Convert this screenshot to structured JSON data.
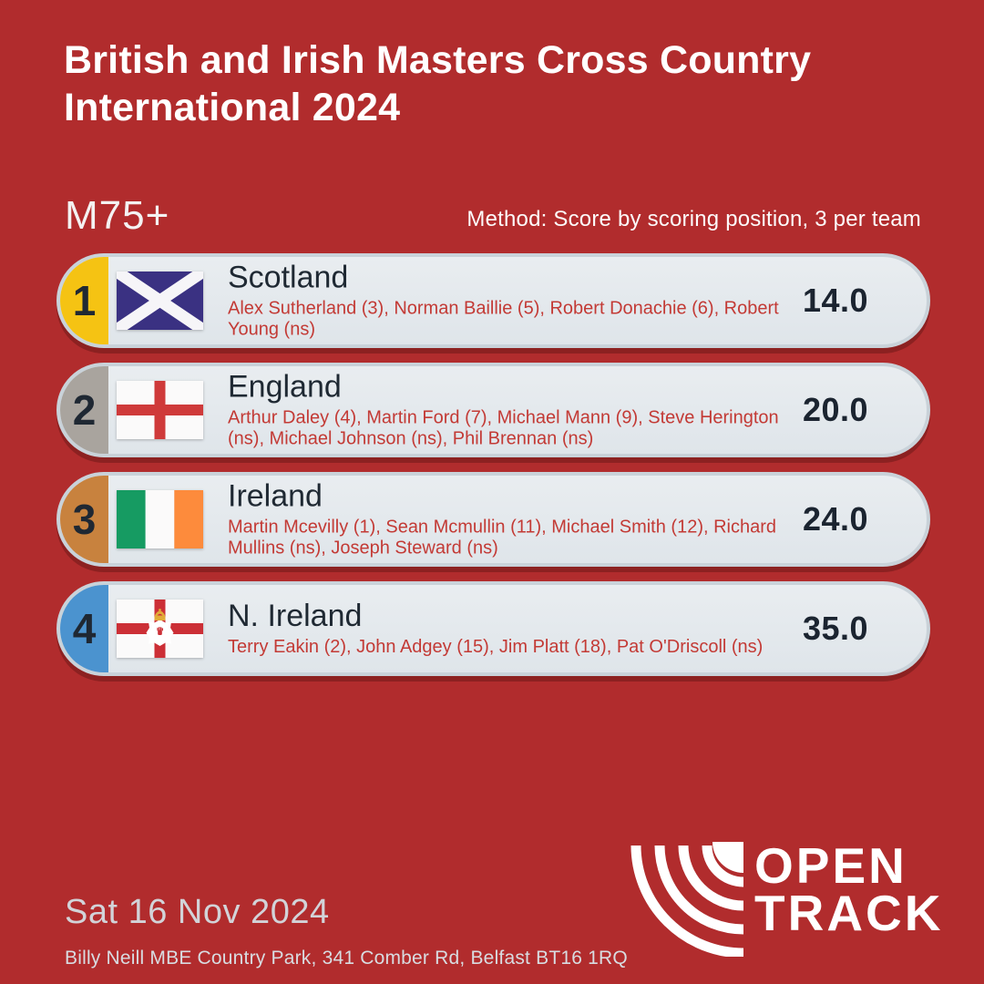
{
  "header": {
    "title_line1": "British and Irish Masters Cross Country",
    "title_line2": "International 2024",
    "category": "M75+",
    "method": "Method: Score by scoring position, 3 per team"
  },
  "results": [
    {
      "rank": "1",
      "medal_color": "#f5c313",
      "flag": "scotland",
      "team": "Scotland",
      "athletes": "Alex Sutherland (3), Norman Baillie (5), Robert Donachie (6), Robert Young (ns)",
      "score": "14.0"
    },
    {
      "rank": "2",
      "medal_color": "#a9a49e",
      "flag": "england",
      "team": "England",
      "athletes": "Arthur Daley (4), Martin Ford (7), Michael Mann (9), Steve Herington (ns), Michael Johnson (ns), Phil Brennan (ns)",
      "score": "20.0"
    },
    {
      "rank": "3",
      "medal_color": "#c8823e",
      "flag": "ireland",
      "team": "Ireland",
      "athletes": "Martin Mcevilly (1), Sean Mcmullin (11), Michael Smith (12), Richard Mullins (ns), Joseph Steward (ns)",
      "score": "24.0"
    },
    {
      "rank": "4",
      "medal_color": "#4b93cf",
      "flag": "n_ireland",
      "team": "N. Ireland",
      "athletes": "Terry Eakin (2), John Adgey (15), Jim Platt (18), Pat O'Driscoll (ns)",
      "score": "35.0"
    }
  ],
  "footer": {
    "date": "Sat 16 Nov 2024",
    "venue": "Billy Neill MBE Country Park, 341 Comber Rd, Belfast BT16 1RQ",
    "logo_line1": "OPEN",
    "logo_line2": "TRACK"
  },
  "colors": {
    "background": "#b12c2d",
    "pill_body": "#e4e9ed",
    "pill_border": "#c9d2d9",
    "pill_shadow": "#8c2121",
    "athlete_text": "#c33a35",
    "dark_text": "#1f2833",
    "gold": "#f5c313",
    "silver": "#a9a49e",
    "bronze": "#c8823e",
    "fourth_blue": "#4b93cf"
  }
}
